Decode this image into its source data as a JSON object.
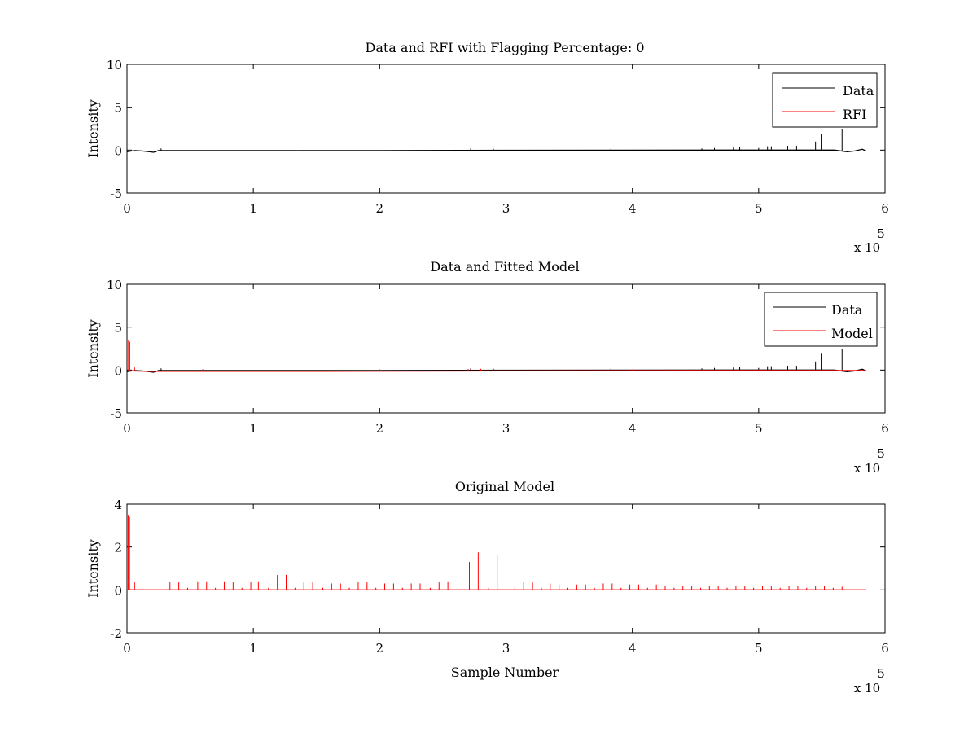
{
  "chart_data": [
    {
      "type": "line",
      "title": "Data and RFI with Flagging Percentage: 0",
      "xlabel": "",
      "ylabel": "Intensity",
      "xlim": [
        0,
        600000
      ],
      "ylim": [
        -5,
        10
      ],
      "xticks": [
        0,
        1,
        2,
        3,
        4,
        5,
        6
      ],
      "yticks": [
        -5,
        0,
        5,
        10
      ],
      "x_exponent_base": "x 10",
      "x_exponent_power": "5",
      "grid": false,
      "legend": "top-right",
      "series": [
        {
          "name": "Data",
          "color": "#000000",
          "baseline": [
            [
              0,
              -0.2
            ],
            [
              1500,
              -0.15
            ],
            [
              6000,
              -0.05
            ],
            [
              12000,
              -0.1
            ],
            [
              18000,
              -0.2
            ],
            [
              21000,
              -0.25
            ],
            [
              25000,
              -0.05
            ],
            [
              100000,
              -0.05
            ],
            [
              200000,
              -0.05
            ],
            [
              300000,
              -0.02
            ],
            [
              400000,
              -0.01
            ],
            [
              500000,
              0.0
            ],
            [
              560000,
              0.0
            ],
            [
              570000,
              -0.2
            ],
            [
              576000,
              -0.1
            ],
            [
              582000,
              0.1
            ],
            [
              585000,
              -0.1
            ]
          ],
          "spikes": [
            [
              27000,
              0.2
            ],
            [
              272000,
              0.2
            ],
            [
              290000,
              0.15
            ],
            [
              300000,
              0.15
            ],
            [
              383000,
              0.15
            ],
            [
              455000,
              0.2
            ],
            [
              465000,
              0.25
            ],
            [
              480000,
              0.3
            ],
            [
              485000,
              0.35
            ],
            [
              500000,
              0.25
            ],
            [
              507000,
              0.45
            ],
            [
              510000,
              0.45
            ],
            [
              523000,
              0.5
            ],
            [
              530000,
              0.5
            ],
            [
              545000,
              1.0
            ],
            [
              550000,
              1.9
            ],
            [
              566000,
              2.5
            ]
          ]
        },
        {
          "name": "RFI",
          "color": "#ff0000",
          "baseline": [],
          "spikes": [
            [
              135000,
              -0.15
            ]
          ]
        }
      ]
    },
    {
      "type": "line",
      "title": "Data and Fitted Model",
      "xlabel": "",
      "ylabel": "Intensity",
      "xlim": [
        0,
        600000
      ],
      "ylim": [
        -5,
        10
      ],
      "xticks": [
        0,
        1,
        2,
        3,
        4,
        5,
        6
      ],
      "yticks": [
        -5,
        0,
        5,
        10
      ],
      "x_exponent_base": "x 10",
      "x_exponent_power": "5",
      "grid": false,
      "legend": "top-right",
      "series": [
        {
          "name": "Data",
          "color": "#000000",
          "baseline": [
            [
              0,
              -0.2
            ],
            [
              1500,
              -0.15
            ],
            [
              6000,
              -0.05
            ],
            [
              12000,
              -0.1
            ],
            [
              18000,
              -0.2
            ],
            [
              21000,
              -0.25
            ],
            [
              25000,
              -0.05
            ],
            [
              100000,
              -0.05
            ],
            [
              200000,
              -0.05
            ],
            [
              300000,
              -0.02
            ],
            [
              400000,
              -0.01
            ],
            [
              500000,
              0.0
            ],
            [
              560000,
              0.0
            ],
            [
              570000,
              -0.2
            ],
            [
              576000,
              -0.1
            ],
            [
              582000,
              0.1
            ],
            [
              585000,
              -0.1
            ]
          ],
          "spikes": [
            [
              27000,
              0.2
            ],
            [
              272000,
              0.2
            ],
            [
              290000,
              0.15
            ],
            [
              300000,
              0.15
            ],
            [
              383000,
              0.15
            ],
            [
              455000,
              0.2
            ],
            [
              465000,
              0.25
            ],
            [
              480000,
              0.3
            ],
            [
              485000,
              0.35
            ],
            [
              500000,
              0.25
            ],
            [
              507000,
              0.45
            ],
            [
              510000,
              0.45
            ],
            [
              523000,
              0.5
            ],
            [
              530000,
              0.5
            ],
            [
              545000,
              1.0
            ],
            [
              550000,
              1.9
            ],
            [
              566000,
              2.5
            ]
          ]
        },
        {
          "name": "Model",
          "color": "#ff0000",
          "baseline": [
            [
              0,
              -0.1
            ],
            [
              2500,
              -0.1
            ],
            [
              20000,
              -0.15
            ],
            [
              150000,
              -0.15
            ],
            [
              300000,
              -0.1
            ],
            [
              450000,
              -0.05
            ],
            [
              585000,
              -0.05
            ]
          ],
          "spikes": [
            [
              1200,
              3.5
            ],
            [
              2200,
              3.3
            ],
            [
              6000,
              0.3
            ],
            [
              60000,
              0.1
            ],
            [
              200000,
              0.08
            ],
            [
              270000,
              0.12
            ],
            [
              280000,
              0.15
            ],
            [
              300000,
              0.12
            ],
            [
              400000,
              0.08
            ],
            [
              500000,
              0.05
            ]
          ]
        }
      ]
    },
    {
      "type": "line",
      "title": "Original Model",
      "xlabel": "Sample Number",
      "ylabel": "Intensity",
      "xlim": [
        0,
        600000
      ],
      "ylim": [
        -2,
        4
      ],
      "xticks": [
        0,
        1,
        2,
        3,
        4,
        5,
        6
      ],
      "yticks": [
        -2,
        0,
        2,
        4
      ],
      "x_exponent_base": "x 10",
      "x_exponent_power": "5",
      "grid": false,
      "legend": "none",
      "series": [
        {
          "name": "",
          "color": "#ff0000",
          "baseline": [
            [
              0,
              0
            ],
            [
              585000,
              0
            ]
          ],
          "spikes": [
            [
              1000,
              3.5
            ],
            [
              2000,
              3.4
            ],
            [
              6000,
              0.35
            ],
            [
              12000,
              0.08
            ],
            [
              34000,
              0.35
            ],
            [
              41000,
              0.35
            ],
            [
              48000,
              0.1
            ],
            [
              56000,
              0.4
            ],
            [
              63000,
              0.4
            ],
            [
              70000,
              0.1
            ],
            [
              77000,
              0.4
            ],
            [
              84000,
              0.35
            ],
            [
              91000,
              0.1
            ],
            [
              98000,
              0.35
            ],
            [
              104000,
              0.4
            ],
            [
              112000,
              0.1
            ],
            [
              119000,
              0.7
            ],
            [
              126000,
              0.7
            ],
            [
              133000,
              0.1
            ],
            [
              140000,
              0.35
            ],
            [
              147000,
              0.35
            ],
            [
              155000,
              0.1
            ],
            [
              162000,
              0.3
            ],
            [
              169000,
              0.3
            ],
            [
              176000,
              0.1
            ],
            [
              183000,
              0.35
            ],
            [
              190000,
              0.35
            ],
            [
              197000,
              0.1
            ],
            [
              204000,
              0.3
            ],
            [
              211000,
              0.3
            ],
            [
              218000,
              0.1
            ],
            [
              225000,
              0.3
            ],
            [
              232000,
              0.3
            ],
            [
              240000,
              0.1
            ],
            [
              247000,
              0.35
            ],
            [
              254000,
              0.4
            ],
            [
              262000,
              0.1
            ],
            [
              271000,
              1.3
            ],
            [
              278000,
              1.75
            ],
            [
              286000,
              0.1
            ],
            [
              293000,
              1.6
            ],
            [
              300000,
              1.0
            ],
            [
              307000,
              0.1
            ],
            [
              314000,
              0.35
            ],
            [
              321000,
              0.35
            ],
            [
              328000,
              0.1
            ],
            [
              335000,
              0.3
            ],
            [
              342000,
              0.25
            ],
            [
              349000,
              0.1
            ],
            [
              356000,
              0.25
            ],
            [
              363000,
              0.25
            ],
            [
              370000,
              0.1
            ],
            [
              377000,
              0.3
            ],
            [
              384000,
              0.3
            ],
            [
              391000,
              0.1
            ],
            [
              398000,
              0.25
            ],
            [
              405000,
              0.25
            ],
            [
              412000,
              0.1
            ],
            [
              419000,
              0.25
            ],
            [
              426000,
              0.2
            ],
            [
              433000,
              0.1
            ],
            [
              440000,
              0.2
            ],
            [
              447000,
              0.2
            ],
            [
              454000,
              0.1
            ],
            [
              461000,
              0.2
            ],
            [
              468000,
              0.2
            ],
            [
              475000,
              0.1
            ],
            [
              482000,
              0.2
            ],
            [
              489000,
              0.2
            ],
            [
              496000,
              0.1
            ],
            [
              503000,
              0.2
            ],
            [
              510000,
              0.2
            ],
            [
              517000,
              0.1
            ],
            [
              524000,
              0.2
            ],
            [
              531000,
              0.2
            ],
            [
              538000,
              0.1
            ],
            [
              545000,
              0.2
            ],
            [
              552000,
              0.2
            ],
            [
              559000,
              0.1
            ],
            [
              566000,
              0.15
            ]
          ]
        }
      ]
    }
  ]
}
